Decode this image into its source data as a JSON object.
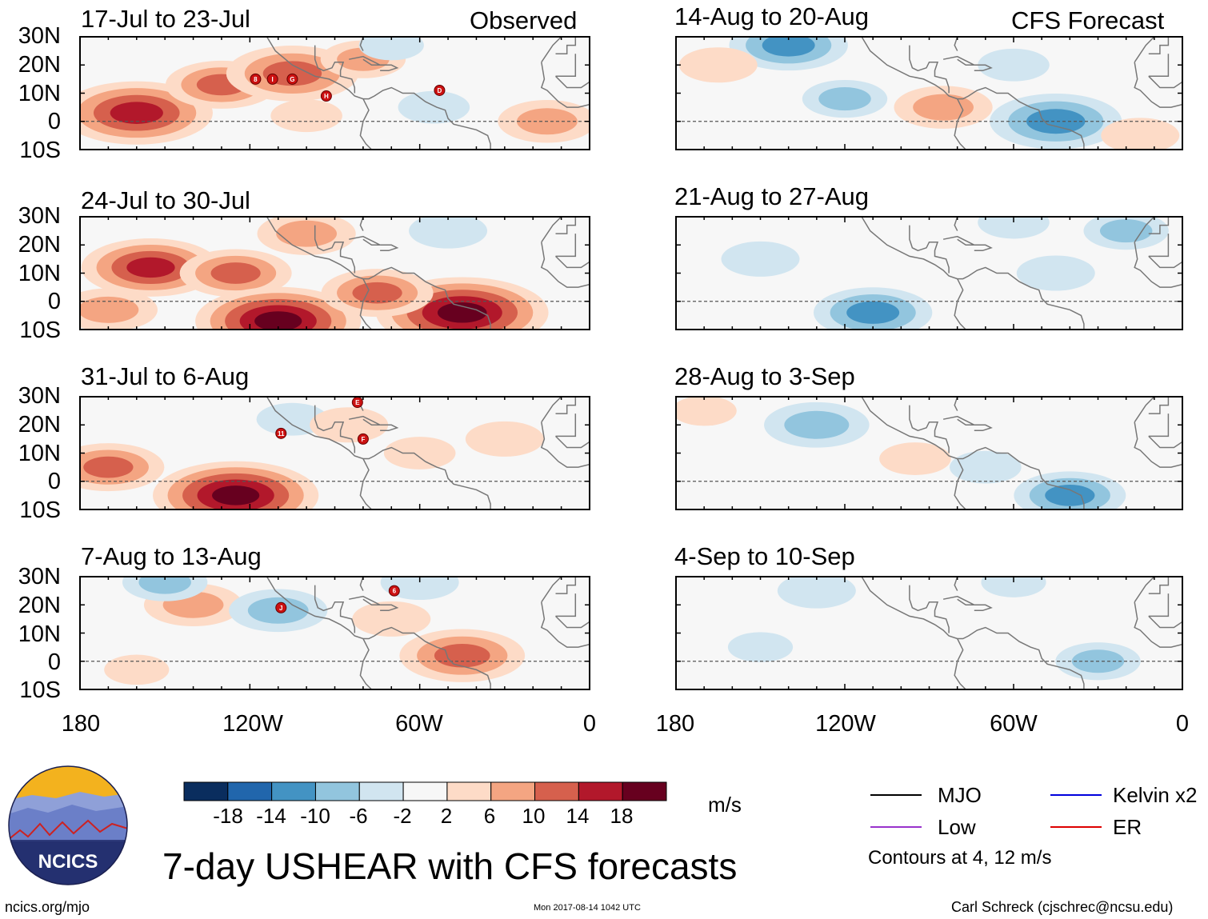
{
  "page_title": "7-day USHEAR with CFS forecasts",
  "column_headers": {
    "observed": "Observed",
    "forecast": "CFS Forecast"
  },
  "lat_labels": [
    "30N",
    "20N",
    "10N",
    "0",
    "10S"
  ],
  "lon_labels": [
    "180",
    "120W",
    "60W",
    "0"
  ],
  "units": "m/s",
  "colorbar": {
    "colors": [
      "#0a2d5e",
      "#2166ac",
      "#4393c3",
      "#92c5de",
      "#d1e5f0",
      "#f7f7f7",
      "#fddbc7",
      "#f4a582",
      "#d6604d",
      "#b2182b",
      "#67001f"
    ],
    "tick_labels": [
      "-18",
      "-14",
      "-10",
      "-6",
      "-2",
      "2",
      "6",
      "10",
      "14",
      "18"
    ]
  },
  "legend": {
    "items": [
      {
        "label": "MJO",
        "color": "#000000"
      },
      {
        "label": "Kelvin x2",
        "color": "#0000dd"
      },
      {
        "label": "Low",
        "color": "#9932cc"
      },
      {
        "label": "ER",
        "color": "#dd0000"
      }
    ],
    "note": "Contours at 4, 12 m/s"
  },
  "footer": {
    "url": "ncics.org/mjo",
    "timestamp": "Mon 2017-08-14 1042 UTC",
    "credit": "Carl Schreck (cjschrec@ncsu.edu)"
  },
  "logo_text": "NCICS",
  "chart_data": [
    {
      "type": "heatmap",
      "title": "17-Jul to 23-Jul",
      "kind": "observed",
      "xlim": [
        -180,
        0
      ],
      "ylim": [
        -10,
        30
      ],
      "anomalies": [
        {
          "lon": -160,
          "lat": 3,
          "value": 16
        },
        {
          "lon": -130,
          "lat": 13,
          "value": 10
        },
        {
          "lon": -105,
          "lat": 17,
          "value": 13
        },
        {
          "lon": -80,
          "lat": 22,
          "value": 6
        },
        {
          "lon": -55,
          "lat": 5,
          "value": -4
        },
        {
          "lon": -15,
          "lat": 0,
          "value": 8
        },
        {
          "lon": -100,
          "lat": 2,
          "value": 4
        },
        {
          "lon": -70,
          "lat": 27,
          "value": -3
        }
      ],
      "storms": [
        {
          "label": "8",
          "lon": -118,
          "lat": 15
        },
        {
          "label": "I",
          "lon": -112,
          "lat": 15
        },
        {
          "label": "G",
          "lon": -105,
          "lat": 15
        },
        {
          "label": "H",
          "lon": -93,
          "lat": 9
        },
        {
          "label": "D",
          "lon": -53,
          "lat": 11
        }
      ]
    },
    {
      "type": "heatmap",
      "title": "14-Aug to 20-Aug",
      "kind": "forecast",
      "xlim": [
        -180,
        0
      ],
      "ylim": [
        -10,
        30
      ],
      "anomalies": [
        {
          "lon": -140,
          "lat": 27,
          "value": -11
        },
        {
          "lon": -120,
          "lat": 8,
          "value": -6
        },
        {
          "lon": -85,
          "lat": 5,
          "value": 8
        },
        {
          "lon": -45,
          "lat": 0,
          "value": -13
        },
        {
          "lon": -60,
          "lat": 20,
          "value": -4
        },
        {
          "lon": -165,
          "lat": 20,
          "value": 5
        },
        {
          "lon": -15,
          "lat": -5,
          "value": 5
        }
      ],
      "storms": []
    },
    {
      "type": "heatmap",
      "title": "24-Jul to 30-Jul",
      "kind": "observed",
      "xlim": [
        -180,
        0
      ],
      "ylim": [
        -10,
        30
      ],
      "anomalies": [
        {
          "lon": -155,
          "lat": 12,
          "value": 14
        },
        {
          "lon": -125,
          "lat": 10,
          "value": 10
        },
        {
          "lon": -110,
          "lat": -7,
          "value": 18
        },
        {
          "lon": -45,
          "lat": -4,
          "value": 19
        },
        {
          "lon": -75,
          "lat": 3,
          "value": 10
        },
        {
          "lon": -50,
          "lat": 25,
          "value": -5
        },
        {
          "lon": -100,
          "lat": 24,
          "value": 8
        },
        {
          "lon": -170,
          "lat": -3,
          "value": 8
        }
      ],
      "storms": []
    },
    {
      "type": "heatmap",
      "title": "21-Aug to 27-Aug",
      "kind": "forecast",
      "xlim": [
        -180,
        0
      ],
      "ylim": [
        -10,
        30
      ],
      "anomalies": [
        {
          "lon": -110,
          "lat": -4,
          "value": -11
        },
        {
          "lon": -150,
          "lat": 15,
          "value": -5
        },
        {
          "lon": -45,
          "lat": 10,
          "value": -5
        },
        {
          "lon": -60,
          "lat": 28,
          "value": -4
        },
        {
          "lon": -20,
          "lat": 25,
          "value": -6
        }
      ],
      "storms": []
    },
    {
      "type": "heatmap",
      "title": "31-Jul to 6-Aug",
      "kind": "observed",
      "xlim": [
        -180,
        0
      ],
      "ylim": [
        -10,
        30
      ],
      "anomalies": [
        {
          "lon": -125,
          "lat": -5,
          "value": 18
        },
        {
          "lon": -170,
          "lat": 5,
          "value": 10
        },
        {
          "lon": -105,
          "lat": 22,
          "value": -4
        },
        {
          "lon": -60,
          "lat": 10,
          "value": 4
        },
        {
          "lon": -30,
          "lat": 15,
          "value": 5
        },
        {
          "lon": -85,
          "lat": 20,
          "value": 5
        }
      ],
      "storms": [
        {
          "label": "E",
          "lon": -82,
          "lat": 28
        },
        {
          "label": "11",
          "lon": -109,
          "lat": 17
        },
        {
          "label": "F",
          "lon": -80,
          "lat": 15
        }
      ]
    },
    {
      "type": "heatmap",
      "title": "28-Aug to 3-Sep",
      "kind": "forecast",
      "xlim": [
        -180,
        0
      ],
      "ylim": [
        -10,
        30
      ],
      "anomalies": [
        {
          "lon": -130,
          "lat": 20,
          "value": -9
        },
        {
          "lon": -40,
          "lat": -5,
          "value": -10
        },
        {
          "lon": -70,
          "lat": 5,
          "value": -4
        },
        {
          "lon": -95,
          "lat": 8,
          "value": 4
        },
        {
          "lon": -170,
          "lat": 25,
          "value": 3
        }
      ],
      "storms": []
    },
    {
      "type": "heatmap",
      "title": "7-Aug to 13-Aug",
      "kind": "observed",
      "xlim": [
        -180,
        0
      ],
      "ylim": [
        -10,
        30
      ],
      "anomalies": [
        {
          "lon": -140,
          "lat": 20,
          "value": 8
        },
        {
          "lon": -45,
          "lat": 2,
          "value": 12
        },
        {
          "lon": -110,
          "lat": 18,
          "value": -8
        },
        {
          "lon": -150,
          "lat": 28,
          "value": -6
        },
        {
          "lon": -70,
          "lat": 15,
          "value": 5
        },
        {
          "lon": -60,
          "lat": 28,
          "value": -5
        },
        {
          "lon": -160,
          "lat": -3,
          "value": 3
        }
      ],
      "storms": [
        {
          "label": "6",
          "lon": -69,
          "lat": 25
        },
        {
          "label": "J",
          "lon": -109,
          "lat": 19
        }
      ]
    },
    {
      "type": "heatmap",
      "title": "4-Sep to 10-Sep",
      "kind": "forecast",
      "xlim": [
        -180,
        0
      ],
      "ylim": [
        -10,
        30
      ],
      "anomalies": [
        {
          "lon": -130,
          "lat": 25,
          "value": -5
        },
        {
          "lon": -30,
          "lat": 0,
          "value": -6
        },
        {
          "lon": -60,
          "lat": 28,
          "value": -3
        },
        {
          "lon": -150,
          "lat": 5,
          "value": -3
        }
      ],
      "storms": []
    }
  ]
}
